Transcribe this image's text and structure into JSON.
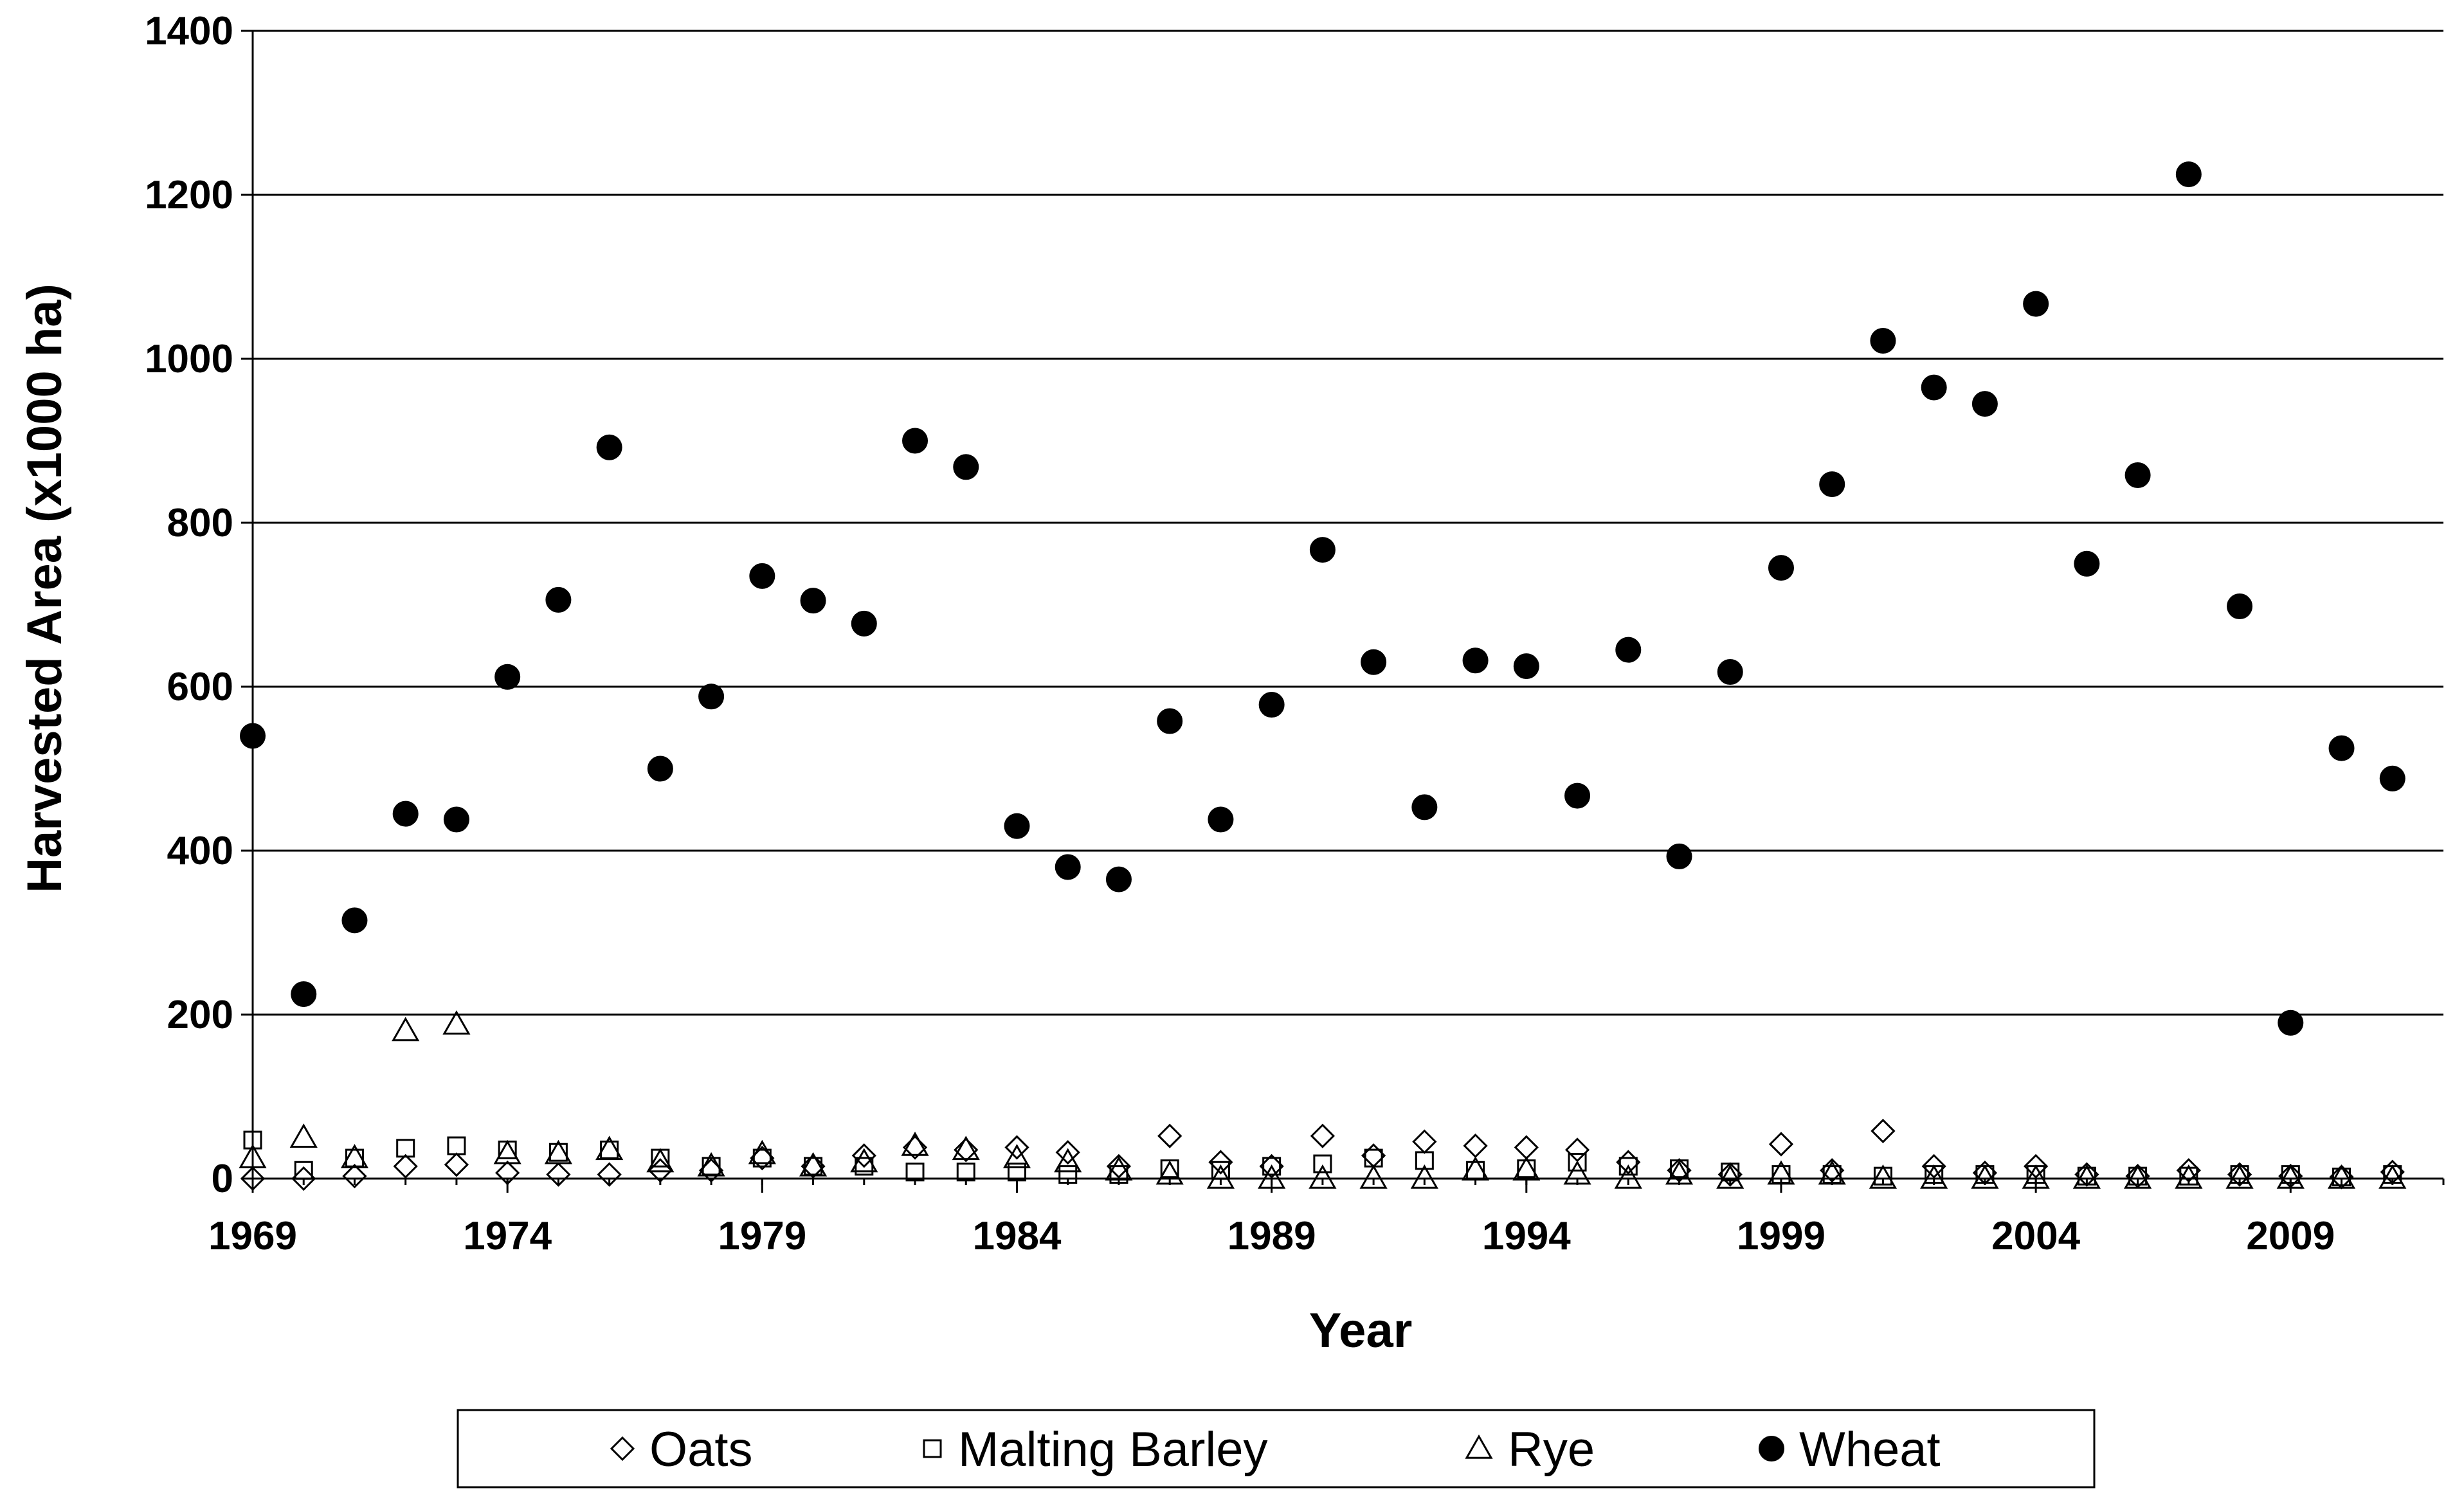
{
  "chart_data": {
    "type": "scatter",
    "title": "",
    "xlabel": "Year",
    "ylabel": "Harvested  Area (x1000 ha)",
    "xlim": [
      1969,
      2012
    ],
    "ylim": [
      0,
      1400
    ],
    "x_ticks": [
      "1969",
      "1974",
      "1979",
      "1984",
      "1989",
      "1994",
      "1999",
      "2004",
      "2009"
    ],
    "y_ticks": [
      "0",
      "200",
      "400",
      "600",
      "800",
      "1000",
      "1200",
      "1400"
    ],
    "grid": "horizontal",
    "legend_position": "bottom",
    "x": [
      1969,
      1970,
      1971,
      1972,
      1973,
      1974,
      1975,
      1976,
      1977,
      1978,
      1979,
      1980,
      1981,
      1982,
      1983,
      1984,
      1985,
      1986,
      1987,
      1988,
      1989,
      1990,
      1991,
      1992,
      1993,
      1994,
      1995,
      1996,
      1997,
      1998,
      1999,
      2000,
      2001,
      2002,
      2003,
      2004,
      2005,
      2006,
      2007,
      2008,
      2009,
      2010,
      2011
    ],
    "series": [
      {
        "name": "Oats",
        "marker": "diamond-open",
        "values": [
          0,
          0,
          3,
          15,
          17,
          7,
          5,
          5,
          10,
          10,
          25,
          15,
          28,
          38,
          35,
          38,
          32,
          15,
          52,
          20,
          15,
          52,
          28,
          45,
          40,
          38,
          35,
          20,
          10,
          5,
          42,
          10,
          58,
          15,
          7,
          15,
          5,
          3,
          10,
          5,
          3,
          2,
          8
        ]
      },
      {
        "name": "Malting Barley",
        "marker": "square-open",
        "values": [
          47,
          10,
          25,
          37,
          40,
          35,
          32,
          35,
          25,
          15,
          25,
          15,
          15,
          8,
          8,
          8,
          5,
          5,
          12,
          10,
          15,
          18,
          25,
          22,
          10,
          12,
          20,
          15,
          12,
          8,
          5,
          5,
          3,
          5,
          5,
          5,
          3,
          3,
          3,
          5,
          5,
          2,
          5
        ]
      },
      {
        "name": "Rye",
        "marker": "triangle-open",
        "values": [
          25,
          50,
          25,
          180,
          188,
          30,
          30,
          35,
          20,
          15,
          30,
          15,
          20,
          40,
          35,
          25,
          20,
          10,
          5,
          0,
          0,
          0,
          0,
          0,
          10,
          10,
          5,
          0,
          5,
          0,
          5,
          5,
          0,
          0,
          0,
          0,
          0,
          0,
          0,
          0,
          0,
          0,
          0
        ]
      },
      {
        "name": "Wheat",
        "marker": "circle-filled",
        "values": [
          540,
          225,
          315,
          445,
          438,
          612,
          706,
          892,
          500,
          588,
          735,
          705,
          677,
          900,
          868,
          430,
          380,
          365,
          558,
          438,
          578,
          767,
          630,
          453,
          632,
          625,
          467,
          645,
          393,
          618,
          745,
          847,
          1022,
          965,
          945,
          1067,
          750,
          858,
          1225,
          698,
          190,
          525,
          488
        ]
      }
    ]
  }
}
